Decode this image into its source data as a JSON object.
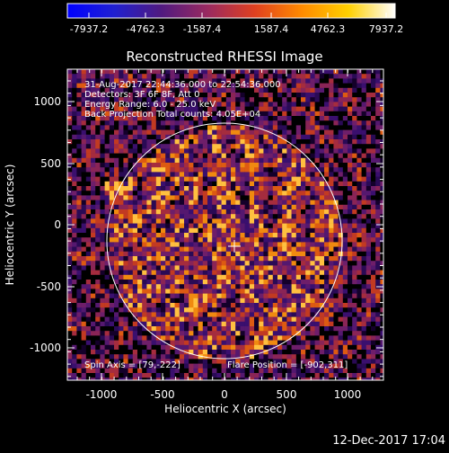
{
  "colorbar": {
    "ticks": [
      "-7937.2",
      "-4762.3",
      "-1587.4",
      "1587.4",
      "4762.3",
      "7937.2"
    ],
    "colors": [
      "#0000ff",
      "#2020d0",
      "#501a80",
      "#9a2a60",
      "#e04020",
      "#ff8a00",
      "#ffd000",
      "#ffffff"
    ]
  },
  "plot": {
    "title": "Reconstructed RHESSI Image",
    "info_lines": [
      "31-Aug-2017 22:44:36.000 to 22:54:36.000",
      "Detectors: 3F 6F 8F, Att 0",
      "Energy Range: 6.0 - 25.0 keV",
      "Back Projection    Total counts: 4.05E+04"
    ],
    "spin_axis": "Spin Axis = [79,-222]",
    "flare_position": "Flare Position = [-902,311]",
    "xlabel": "Heliocentric X (arcsec)",
    "ylabel": "Heliocentric Y (arcsec)",
    "xticks": [
      "-1000",
      "-500",
      "0",
      "500",
      "1000"
    ],
    "yticks": [
      "1000",
      "500",
      "0",
      "-500",
      "-1000"
    ]
  },
  "footer": {
    "timestamp": "12-Dec-2017 17:04"
  }
}
